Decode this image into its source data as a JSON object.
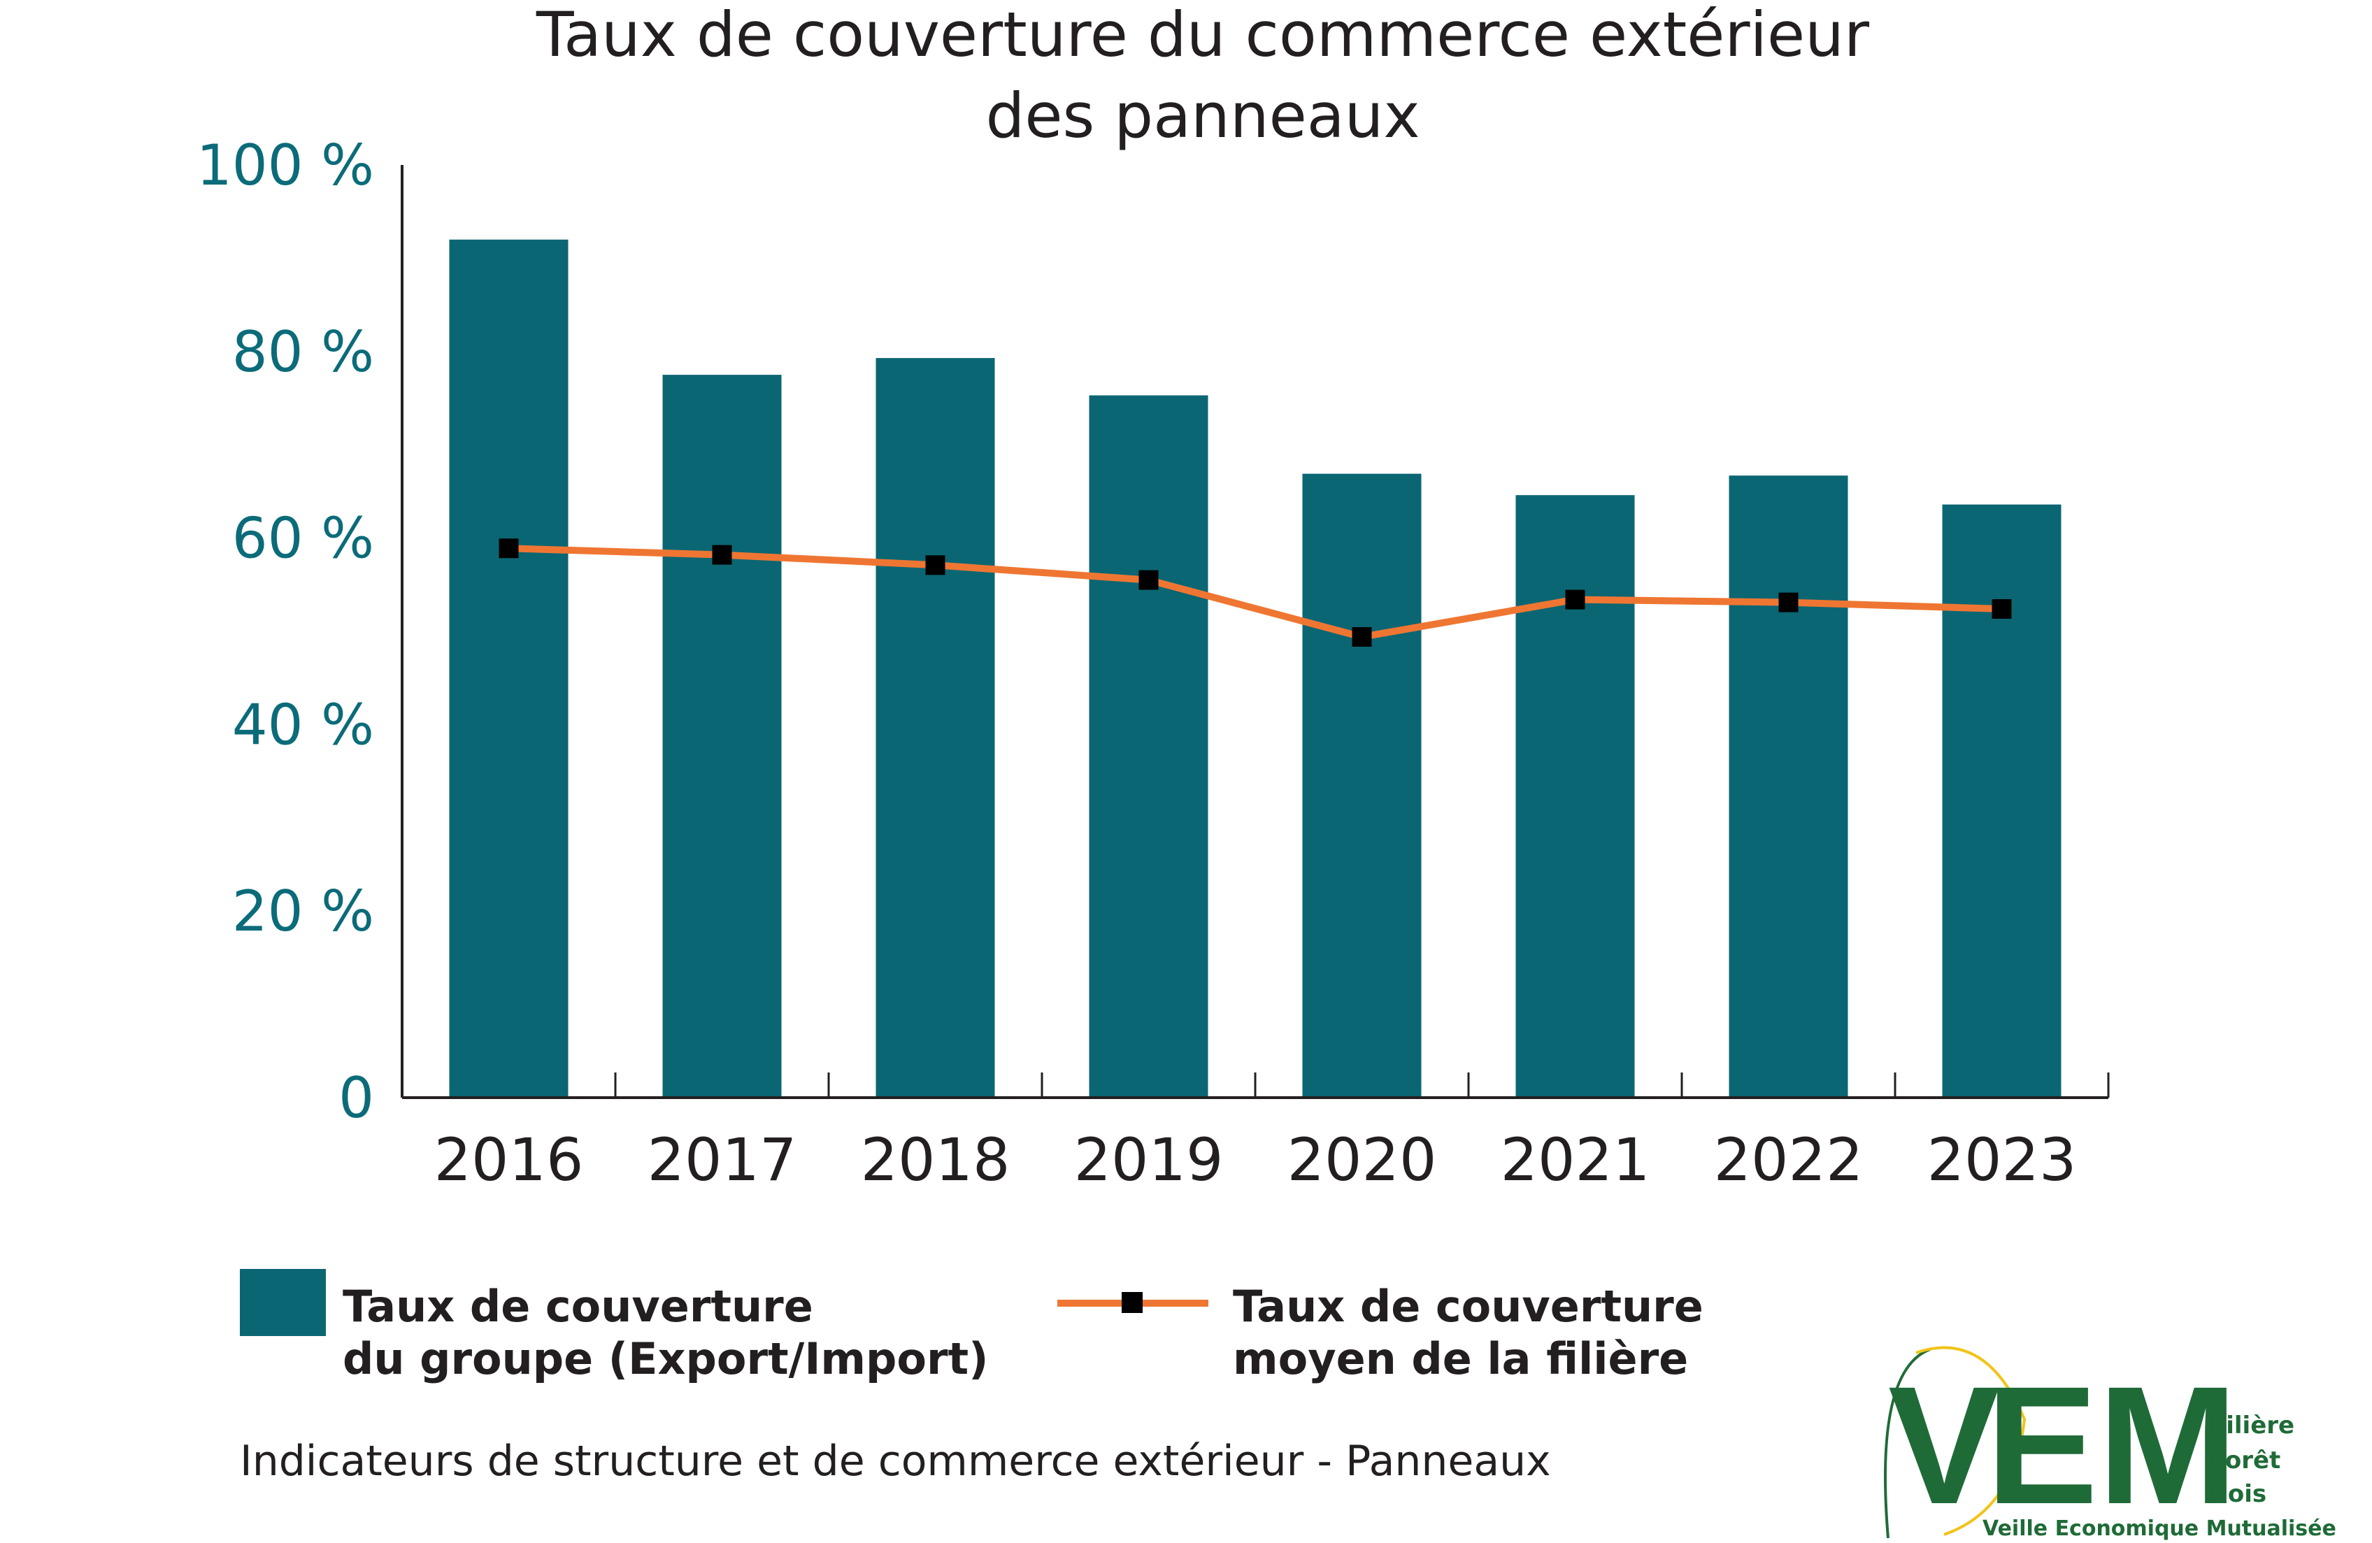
{
  "chart_data": {
    "type": "bar+line",
    "title_line1": "Taux de couverture du commerce extérieur",
    "title_line2": "des panneaux",
    "categories": [
      "2016",
      "2017",
      "2018",
      "2019",
      "2020",
      "2021",
      "2022",
      "2023"
    ],
    "series": [
      {
        "name_line1": "Taux de couverture",
        "name_line2": "du groupe (Export/Import)",
        "kind": "bar",
        "color": "#0b6673",
        "values": [
          92,
          77.5,
          79.3,
          75.3,
          66.9,
          64.6,
          66.7,
          63.6
        ]
      },
      {
        "name_line1": "Taux de couverture",
        "name_line2": "moyen de la filière",
        "kind": "line",
        "color": "#ef7632",
        "marker_color": "#000000",
        "values": [
          58.9,
          58.2,
          57.1,
          55.5,
          49.4,
          53.4,
          53.1,
          52.4
        ]
      }
    ],
    "y_ticks": [
      "0",
      "20 %",
      "40 %",
      "60 %",
      "80 %",
      "100 %"
    ],
    "y_tick_values": [
      0,
      20,
      40,
      60,
      80,
      100
    ],
    "ylim": [
      0,
      100
    ],
    "grid": false,
    "legend_position": "bottom-left",
    "caption": "Indicateurs de structure et de commerce extérieur - Panneaux"
  },
  "logo": {
    "letters": [
      "V",
      "E",
      "M"
    ],
    "side_line1": "Filière",
    "side_line2": "Forêt",
    "side_line3": "Bois",
    "subtitle": "Veille Economique Mutualisée",
    "color": "#1f6b37",
    "accent": "#f0c419"
  }
}
